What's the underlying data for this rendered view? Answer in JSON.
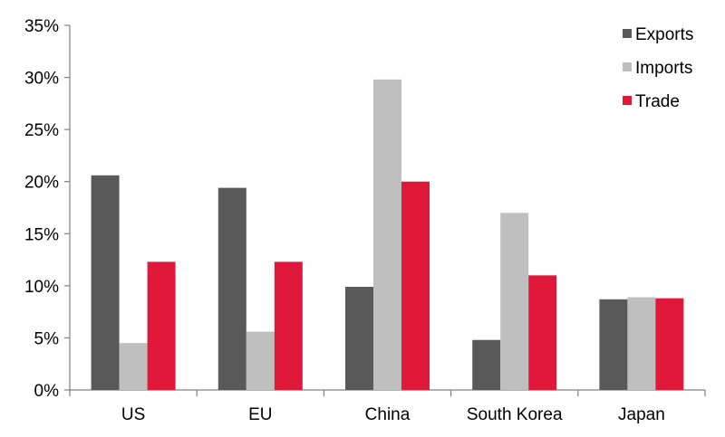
{
  "chart_data": {
    "type": "bar",
    "categories": [
      "US",
      "EU",
      "China",
      "South Korea",
      "Japan"
    ],
    "series": [
      {
        "name": "Exports",
        "color": "#595959",
        "values": [
          20.6,
          19.4,
          9.9,
          4.8,
          8.7
        ]
      },
      {
        "name": "Imports",
        "color": "#bfbfbf",
        "values": [
          4.5,
          5.6,
          29.8,
          17.0,
          8.9
        ]
      },
      {
        "name": "Trade",
        "color": "#e0193a",
        "values": [
          12.3,
          12.3,
          20.0,
          11.0,
          8.8
        ]
      }
    ],
    "title": "",
    "xlabel": "",
    "ylabel": "",
    "ylim": [
      0,
      35
    ],
    "yticks": [
      0,
      5,
      10,
      15,
      20,
      25,
      30,
      35
    ],
    "ytick_labels": [
      "0%",
      "5%",
      "10%",
      "15%",
      "20%",
      "25%",
      "30%",
      "35%"
    ],
    "grid": false,
    "legend_position": "top-right"
  }
}
